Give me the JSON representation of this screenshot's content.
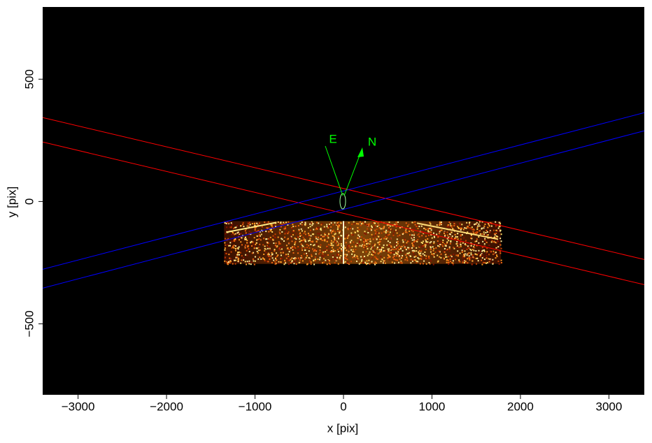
{
  "chart_data": {
    "type": "image",
    "xlabel": "x [pix]",
    "ylabel": "y [pix]",
    "xlim": [
      -3400,
      3400
    ],
    "ylim": [
      -790,
      795
    ],
    "xticks": [
      {
        "value": -3000,
        "label": "−3000"
      },
      {
        "value": -2000,
        "label": "−2000"
      },
      {
        "value": -1000,
        "label": "−1000"
      },
      0,
      1000,
      2000,
      3000
    ],
    "yticks": [
      {
        "value": -500,
        "label": "−500"
      },
      0,
      500
    ],
    "image_extent": {
      "x": [
        -1350,
        1780
      ],
      "y": [
        -255,
        -80
      ]
    },
    "lines": [
      {
        "color": "#ff0000",
        "x": [
          -3400,
          3400
        ],
        "y": [
          343,
          -237
        ]
      },
      {
        "color": "#ff0000",
        "x": [
          -3400,
          3400
        ],
        "y": [
          243,
          -340
        ]
      },
      {
        "color": "#0000ff",
        "x": [
          -3400,
          3400
        ],
        "y": [
          -277,
          363
        ]
      },
      {
        "color": "#0000ff",
        "x": [
          -3400,
          3400
        ],
        "y": [
          -354,
          289
        ]
      }
    ],
    "annotations": [
      "E",
      "N"
    ]
  }
}
